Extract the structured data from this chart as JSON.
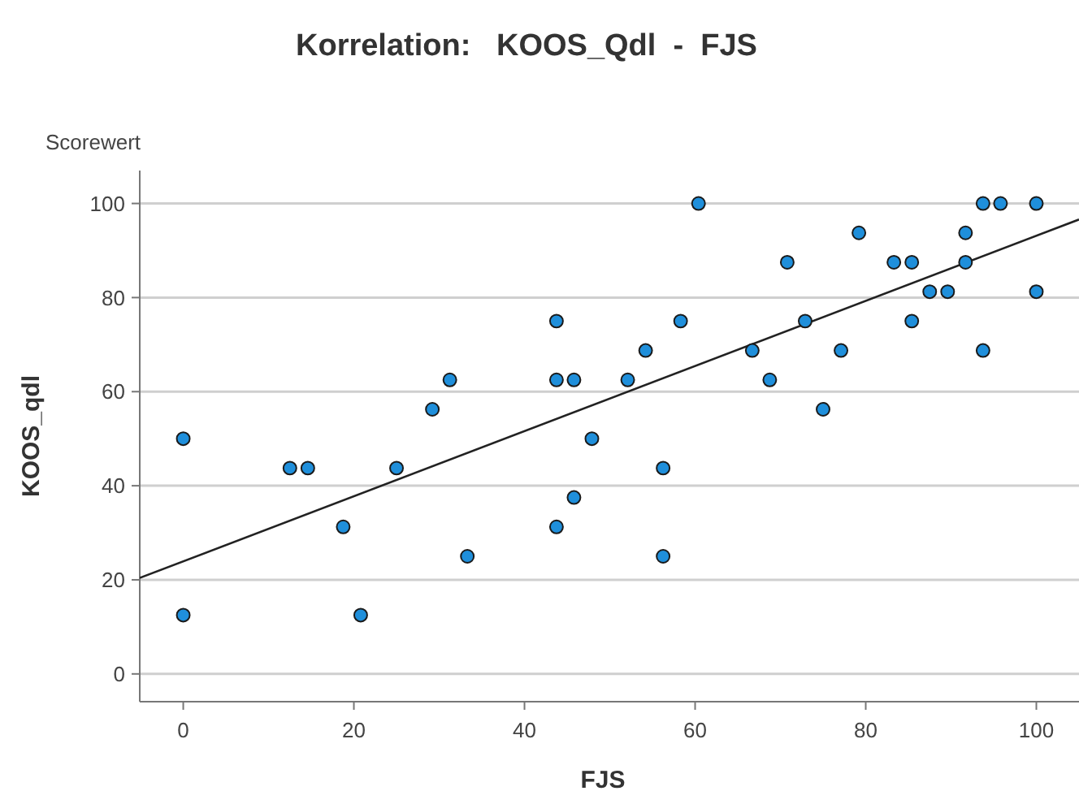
{
  "chart_data": {
    "type": "scatter",
    "title": "Korrelation:   KOOS_Qdl  -  FJS",
    "xlabel": "FJS",
    "ylabel": "KOOS_qdl",
    "annotations": [
      "Scorewert"
    ],
    "xlim": [
      -5.1,
      105
    ],
    "ylim": [
      -5.9,
      107
    ],
    "xticks": [
      0,
      20,
      40,
      60,
      80,
      100
    ],
    "yticks": [
      0,
      20,
      40,
      60,
      80,
      100
    ],
    "grid": "y",
    "series": [
      {
        "marker": "circle",
        "color": "#1f8fdb",
        "x": [
          0,
          0,
          12.5,
          14.6,
          18.75,
          20.8,
          25,
          29.2,
          31.25,
          33.3,
          43.75,
          43.75,
          43.75,
          45.8,
          45.8,
          47.9,
          52.1,
          54.2,
          56.25,
          56.25,
          58.3,
          60.4,
          66.7,
          68.75,
          70.8,
          72.9,
          75,
          77.1,
          79.2,
          83.3,
          85.4,
          85.4,
          87.5,
          89.6,
          91.7,
          91.7,
          93.75,
          93.75,
          95.8,
          100,
          100
        ],
        "values": [
          50,
          12.5,
          43.75,
          43.75,
          31.25,
          12.5,
          43.75,
          56.25,
          62.5,
          25,
          75,
          62.5,
          31.25,
          62.5,
          37.5,
          50,
          62.5,
          68.75,
          43.75,
          25,
          75,
          100,
          68.75,
          62.5,
          87.5,
          75,
          56.25,
          68.75,
          93.75,
          87.5,
          87.5,
          75,
          81.25,
          81.25,
          93.75,
          87.5,
          100,
          68.75,
          100,
          100,
          81.25
        ]
      },
      {
        "type": "line",
        "color": "#222222",
        "x": [
          -5.1,
          105
        ],
        "values": [
          20.4,
          96.6
        ]
      }
    ]
  }
}
